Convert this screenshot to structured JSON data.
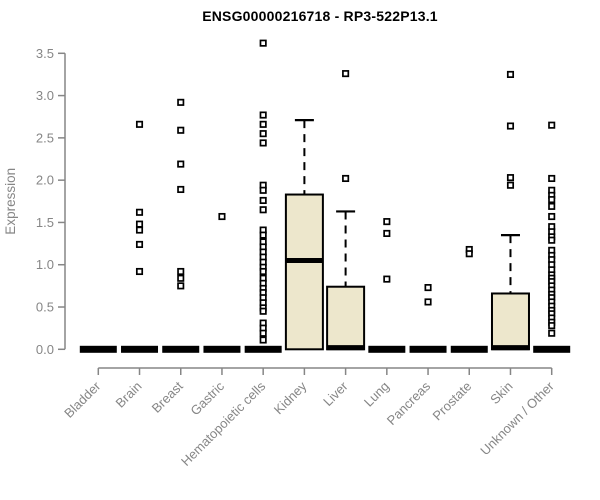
{
  "chart_data": {
    "type": "boxplot",
    "title": "ENSG00000216718 - RP3-522P13.1",
    "xlabel": "",
    "ylabel": "Expression",
    "ylim": [
      0.0,
      3.5
    ],
    "yticks": [
      0.0,
      0.5,
      1.0,
      1.5,
      2.0,
      2.5,
      3.0,
      3.5
    ],
    "grid": false,
    "legend": "none",
    "colors": {
      "box_fill": "#ede7cc",
      "box_stroke": "#000000",
      "outlier_fill": "#ffffff",
      "axis_gray": "#868686",
      "title_color": "#000000",
      "background": "#ffffff"
    },
    "categories": [
      "Bladder",
      "Brain",
      "Breast",
      "Gastric",
      "Hematopoietic cells",
      "Kidney",
      "Liver",
      "Lung",
      "Pancreas",
      "Prostate",
      "Skin",
      "Unknown / Other"
    ],
    "series": [
      {
        "category": "Bladder",
        "q1": 0,
        "median": 0,
        "q3": 0,
        "whisker_low": 0,
        "whisker_high": 0,
        "outliers": []
      },
      {
        "category": "Brain",
        "q1": 0,
        "median": 0,
        "q3": 0,
        "whisker_low": 0,
        "whisker_high": 0,
        "outliers": [
          2.66,
          1.62,
          1.48,
          1.41,
          1.24,
          0.92
        ]
      },
      {
        "category": "Breast",
        "q1": 0,
        "median": 0,
        "q3": 0,
        "whisker_low": 0,
        "whisker_high": 0,
        "outliers": [
          2.92,
          2.59,
          2.19,
          1.89,
          0.92,
          0.84,
          0.75
        ]
      },
      {
        "category": "Gastric",
        "q1": 0,
        "median": 0,
        "q3": 0,
        "whisker_low": 0,
        "whisker_high": 0,
        "outliers": [
          1.57
        ]
      },
      {
        "category": "Hematopoietic cells",
        "q1": 0,
        "median": 0,
        "q3": 0,
        "whisker_low": 0,
        "whisker_high": 0,
        "outliers": [
          3.62,
          2.77,
          2.66,
          2.55,
          2.44,
          1.94,
          1.88,
          1.76,
          1.65,
          1.41,
          1.35,
          1.27,
          1.21,
          1.15,
          1.09,
          1.03,
          0.97,
          0.92,
          0.84,
          0.78,
          0.72,
          0.67,
          0.61,
          0.55,
          0.49,
          0.45,
          0.31,
          0.25,
          0.19,
          0.11
        ]
      },
      {
        "category": "Kidney",
        "q1": 0,
        "median": 1.05,
        "q3": 1.83,
        "whisker_low": 0,
        "whisker_high": 2.71,
        "outliers": []
      },
      {
        "category": "Liver",
        "q1": 0,
        "median": 0.02,
        "q3": 0.74,
        "whisker_low": 0,
        "whisker_high": 1.63,
        "outliers": [
          2.02,
          3.26
        ]
      },
      {
        "category": "Lung",
        "q1": 0,
        "median": 0,
        "q3": 0,
        "whisker_low": 0,
        "whisker_high": 0,
        "outliers": [
          1.51,
          1.37,
          0.83
        ]
      },
      {
        "category": "Pancreas",
        "q1": 0,
        "median": 0,
        "q3": 0,
        "whisker_low": 0,
        "whisker_high": 0,
        "outliers": [
          0.73,
          0.56
        ]
      },
      {
        "category": "Prostate",
        "q1": 0,
        "median": 0,
        "q3": 0,
        "whisker_low": 0,
        "whisker_high": 0,
        "outliers": [
          1.18,
          1.13
        ]
      },
      {
        "category": "Skin",
        "q1": 0,
        "median": 0.02,
        "q3": 0.66,
        "whisker_low": 0,
        "whisker_high": 1.35,
        "outliers": [
          1.94,
          2.03,
          2.64,
          3.25
        ]
      },
      {
        "category": "Unknown / Other",
        "q1": 0,
        "median": 0,
        "q3": 0,
        "whisker_low": 0,
        "whisker_high": 0,
        "outliers": [
          2.65,
          2.02,
          1.88,
          1.82,
          1.77,
          1.69,
          1.57,
          1.45,
          1.39,
          1.33,
          1.29,
          1.17,
          1.11,
          1.06,
          1.0,
          0.94,
          0.88,
          0.84,
          0.8,
          0.75,
          0.7,
          0.65,
          0.61,
          0.56,
          0.51,
          0.46,
          0.42,
          0.37,
          0.32,
          0.28,
          0.19
        ]
      }
    ]
  }
}
